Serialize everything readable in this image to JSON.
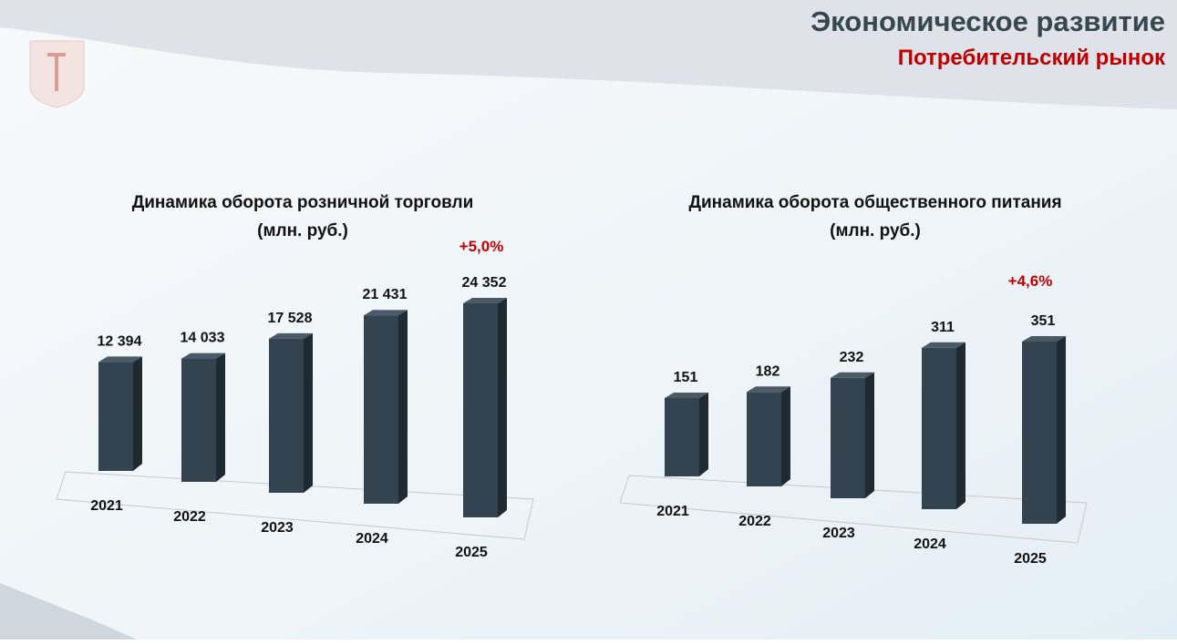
{
  "header": {
    "title": "Экономическое развитие",
    "subtitle": "Потребительский рынок"
  },
  "chart_data": [
    {
      "type": "bar3d",
      "title": "Динамика оборота розничной торговли",
      "subtitle": "(млн. руб.)",
      "annotation": "+5,0%",
      "categories": [
        "2021",
        "2022",
        "2023",
        "2024",
        "2025"
      ],
      "values": [
        12394,
        14033,
        17528,
        21431,
        24352
      ],
      "value_labels": [
        "12 394",
        "14 033",
        "17 528",
        "21 431",
        "24 352"
      ],
      "color": "#334350"
    },
    {
      "type": "bar3d",
      "title": "Динамика оборота общественного питания",
      "subtitle": "(млн. руб.)",
      "annotation": "+4,6%",
      "categories": [
        "2021",
        "2022",
        "2023",
        "2024",
        "2025"
      ],
      "values": [
        151,
        182,
        232,
        311,
        351
      ],
      "color": "#334350"
    }
  ]
}
